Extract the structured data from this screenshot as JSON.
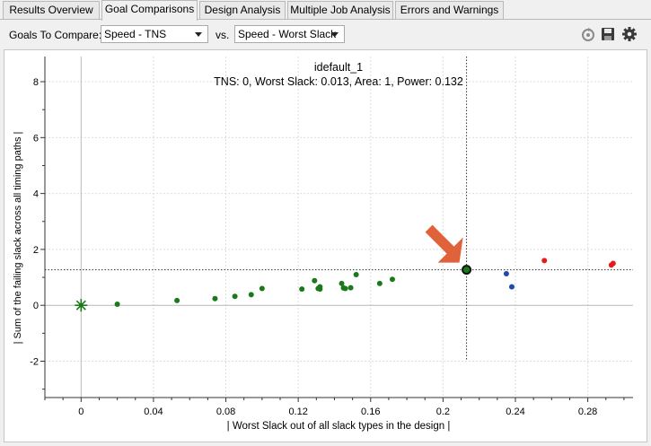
{
  "tabs": [
    {
      "label": "Results Overview",
      "active": false
    },
    {
      "label": "Goal Comparisons",
      "active": true
    },
    {
      "label": "Design Analysis",
      "active": false
    },
    {
      "label": "Multiple Job Analysis",
      "active": false
    },
    {
      "label": "Errors and Warnings",
      "active": false
    }
  ],
  "toolbar": {
    "goals_label": "Goals To Compare:",
    "goal_x": "Speed - TNS",
    "vs_label": "vs.",
    "goal_y": "Speed - Worst Slack",
    "icons": [
      "refresh-icon",
      "save-icon",
      "gear-icon"
    ]
  },
  "annotation": {
    "title": "idefault_1",
    "details": "TNS: 0, Worst Slack: 0.013, Area: 1, Power: 0.132"
  },
  "colors": {
    "green": "#1a7a1a",
    "blue": "#1f4aa8",
    "red": "#e81b1b",
    "arrow": "#e0623a",
    "selected": "#0d3b0d"
  },
  "chart_data": {
    "type": "scatter",
    "xlabel": "| Worst Slack out of all slack types in the design |",
    "ylabel": "| Sum of the failing slack across all timing paths |",
    "xlim": [
      -0.02,
      0.305
    ],
    "ylim": [
      -3.3,
      8.9
    ],
    "xticks": [
      0,
      0.04,
      0.08,
      0.12,
      0.16,
      0.2,
      0.24,
      0.28
    ],
    "xtick_labels": [
      "0",
      "0.04",
      "0.08",
      "0.12",
      "0.16",
      "0.2",
      "0.24",
      "0.28"
    ],
    "yticks": [
      -2,
      0,
      2,
      4,
      6,
      8
    ],
    "ytick_labels": [
      "-2",
      "0",
      "2",
      "4",
      "6",
      "8"
    ],
    "grid": true,
    "origin_star": {
      "x": 0,
      "y": 0
    },
    "selected_point": {
      "x": 0.213,
      "y": 1.27
    },
    "green_points": [
      [
        0.02,
        0.04
      ],
      [
        0.053,
        0.17
      ],
      [
        0.074,
        0.24
      ],
      [
        0.085,
        0.32
      ],
      [
        0.094,
        0.38
      ],
      [
        0.1,
        0.6
      ],
      [
        0.122,
        0.58
      ],
      [
        0.129,
        0.88
      ],
      [
        0.131,
        0.6
      ],
      [
        0.132,
        0.66
      ],
      [
        0.132,
        0.58
      ],
      [
        0.144,
        0.78
      ],
      [
        0.145,
        0.62
      ],
      [
        0.146,
        0.6
      ],
      [
        0.149,
        0.63
      ],
      [
        0.152,
        1.1
      ],
      [
        0.165,
        0.78
      ],
      [
        0.172,
        0.93
      ]
    ],
    "blue_points": [
      [
        0.235,
        1.13
      ],
      [
        0.238,
        0.66
      ]
    ],
    "red_points": [
      [
        0.256,
        1.6
      ],
      [
        0.293,
        1.44
      ],
      [
        0.294,
        1.5
      ]
    ]
  }
}
